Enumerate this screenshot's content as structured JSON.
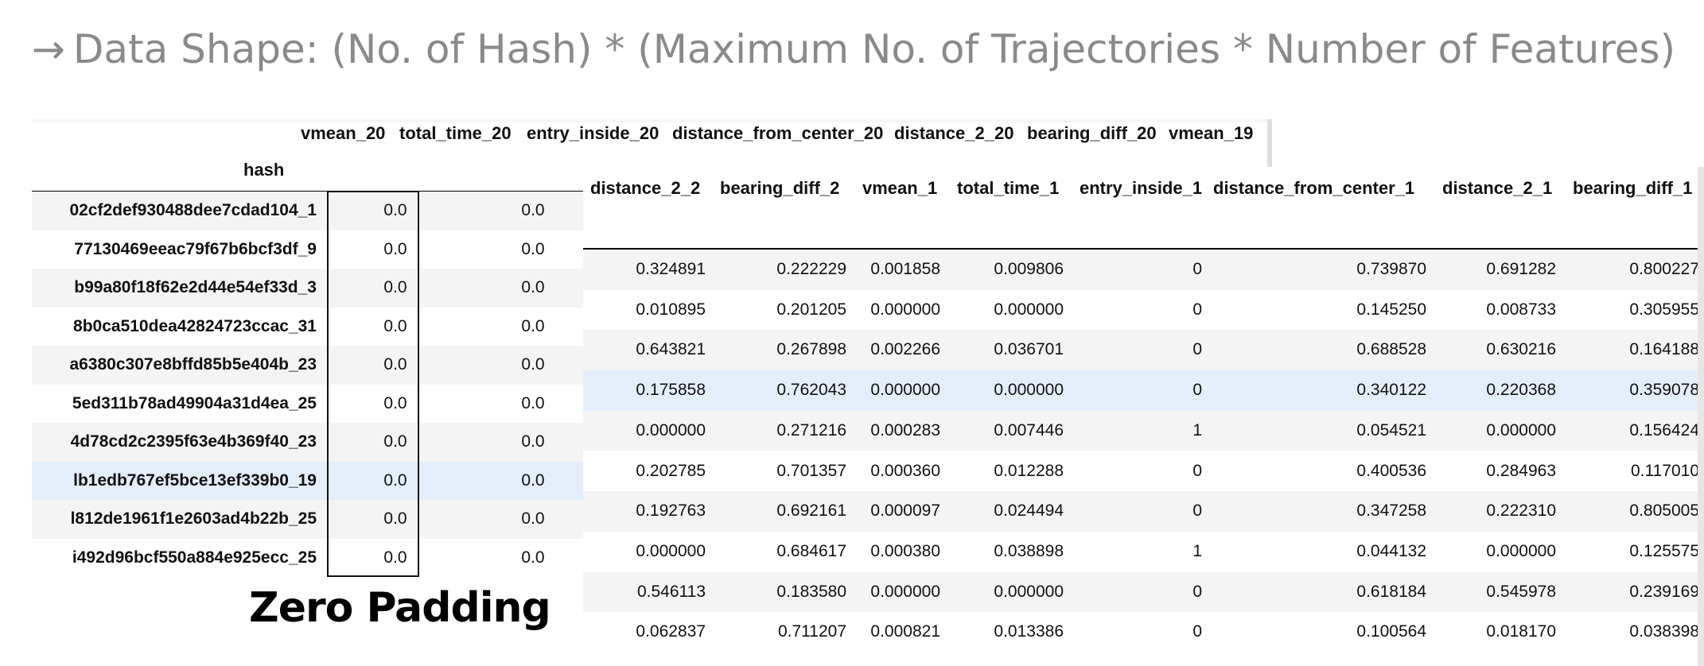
{
  "headline": {
    "arrow": "→",
    "text": "Data Shape: (No. of Hash) * (Maximum No. of Trajectories * Number of Features)"
  },
  "left_table": {
    "columns": [
      "vmean_20",
      "total_time_20",
      "entry_inside_20",
      "distance_from_center_20",
      "distance_2_20",
      "bearing_diff_20",
      "vmean_19"
    ],
    "index_label": "hash",
    "rows": [
      {
        "hash": "02cf2def930488dee7cdad104_1",
        "vmean_20": "0.0",
        "total_time_20": "0.0"
      },
      {
        "hash": "77130469eeac79f67b6bcf3df_9",
        "vmean_20": "0.0",
        "total_time_20": "0.0"
      },
      {
        "hash": "b99a80f18f62e2d44e54ef33d_3",
        "vmean_20": "0.0",
        "total_time_20": "0.0"
      },
      {
        "hash": "8b0ca510dea42824723ccac_31",
        "vmean_20": "0.0",
        "total_time_20": "0.0"
      },
      {
        "hash": "a6380c307e8bffd85b5e404b_23",
        "vmean_20": "0.0",
        "total_time_20": "0.0"
      },
      {
        "hash": "5ed311b78ad49904a31d4ea_25",
        "vmean_20": "0.0",
        "total_time_20": "0.0"
      },
      {
        "hash": "4d78cd2c2395f63e4b369f40_23",
        "vmean_20": "0.0",
        "total_time_20": "0.0"
      },
      {
        "hash": "lb1edb767ef5bce13ef339b0_19",
        "vmean_20": "0.0",
        "total_time_20": "0.0"
      },
      {
        "hash": "l812de1961f1e2603ad4b22b_25",
        "vmean_20": "0.0",
        "total_time_20": "0.0"
      },
      {
        "hash": "i492d96bcf550a884e925ecc_25",
        "vmean_20": "0.0",
        "total_time_20": "0.0"
      }
    ],
    "zero_padding_label": "Zero Padding"
  },
  "right_table": {
    "columns": [
      "distance_2_2",
      "bearing_diff_2",
      "vmean_1",
      "total_time_1",
      "entry_inside_1",
      "distance_from_center_1",
      "distance_2_1",
      "bearing_diff_1"
    ],
    "rows": [
      [
        "0.324891",
        "0.222229",
        "0.001858",
        "0.009806",
        "0",
        "0.739870",
        "0.691282",
        "0.800227"
      ],
      [
        "0.010895",
        "0.201205",
        "0.000000",
        "0.000000",
        "0",
        "0.145250",
        "0.008733",
        "0.305955"
      ],
      [
        "0.643821",
        "0.267898",
        "0.002266",
        "0.036701",
        "0",
        "0.688528",
        "0.630216",
        "0.164188"
      ],
      [
        "0.175858",
        "0.762043",
        "0.000000",
        "0.000000",
        "0",
        "0.340122",
        "0.220368",
        "0.359078"
      ],
      [
        "0.000000",
        "0.271216",
        "0.000283",
        "0.007446",
        "1",
        "0.054521",
        "0.000000",
        "0.156424"
      ],
      [
        "0.202785",
        "0.701357",
        "0.000360",
        "0.012288",
        "0",
        "0.400536",
        "0.284963",
        "0.117010"
      ],
      [
        "0.192763",
        "0.692161",
        "0.000097",
        "0.024494",
        "0",
        "0.347258",
        "0.222310",
        "0.805005"
      ],
      [
        "0.000000",
        "0.684617",
        "0.000380",
        "0.038898",
        "1",
        "0.044132",
        "0.000000",
        "0.125575"
      ],
      [
        "0.546113",
        "0.183580",
        "0.000000",
        "0.000000",
        "0",
        "0.618184",
        "0.545978",
        "0.239169"
      ],
      [
        "0.062837",
        "0.711207",
        "0.000821",
        "0.013386",
        "0",
        "0.100564",
        "0.018170",
        "0.038398"
      ]
    ]
  }
}
